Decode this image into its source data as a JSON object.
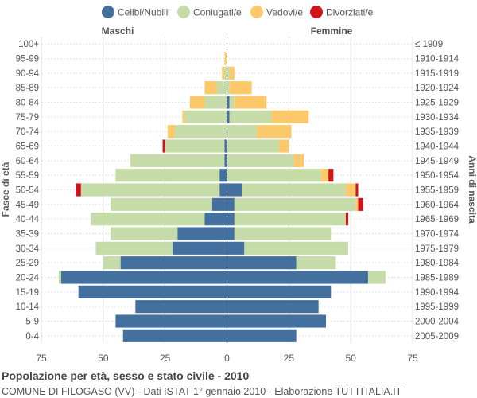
{
  "chart_data": {
    "type": "bar",
    "orientation": "horizontal-population-pyramid",
    "title": "Popolazione per età, sesso e stato civile - 2010",
    "subtitle": "COMUNE DI FILOGASO (VV) - Dati ISTAT 1° gennaio 2010 - Elaborazione TUTTITALIA.IT",
    "left_header": "Maschi",
    "right_header": "Femmine",
    "ylabel_left": "Fasce di età",
    "ylabel_right": "Anni di nascita",
    "xlim": [
      -75,
      75
    ],
    "xticks": [
      -75,
      -50,
      -25,
      0,
      25,
      50,
      75
    ],
    "xtick_labels": [
      "75",
      "50",
      "25",
      "0",
      "25",
      "50",
      "75"
    ],
    "legend": [
      {
        "name": "Celibi/Nubili",
        "color": "#4470a0"
      },
      {
        "name": "Coniugati/e",
        "color": "#c5dba8"
      },
      {
        "name": "Vedovi/e",
        "color": "#fcc96a"
      },
      {
        "name": "Divorziati/e",
        "color": "#d0141a"
      }
    ],
    "age_groups": [
      "100+",
      "95-99",
      "90-94",
      "85-89",
      "80-84",
      "75-79",
      "70-74",
      "65-69",
      "60-64",
      "55-59",
      "50-54",
      "45-49",
      "40-44",
      "35-39",
      "30-34",
      "25-29",
      "20-24",
      "15-19",
      "10-14",
      "5-9",
      "0-4"
    ],
    "birth_years": [
      "≤ 1909",
      "1910-1914",
      "1915-1919",
      "1920-1924",
      "1925-1929",
      "1930-1934",
      "1935-1939",
      "1940-1944",
      "1945-1949",
      "1950-1954",
      "1955-1959",
      "1960-1964",
      "1965-1969",
      "1970-1974",
      "1975-1979",
      "1980-1984",
      "1985-1989",
      "1990-1994",
      "1995-1999",
      "2000-2004",
      "2005-2009"
    ],
    "males": {
      "celibi": [
        0,
        0,
        0,
        0,
        0,
        0,
        0,
        1,
        1,
        3,
        3,
        6,
        9,
        20,
        22,
        43,
        67,
        60,
        37,
        45,
        42
      ],
      "coniugati": [
        0,
        0,
        1,
        4,
        9,
        17,
        21,
        24,
        38,
        42,
        56,
        41,
        46,
        27,
        31,
        7,
        1,
        0,
        0,
        0,
        0
      ],
      "vedovi": [
        0,
        1,
        1,
        5,
        6,
        1,
        3,
        0,
        0,
        0,
        0,
        0,
        0,
        0,
        0,
        0,
        0,
        0,
        0,
        0,
        0
      ],
      "divorziati": [
        0,
        0,
        0,
        0,
        0,
        0,
        0,
        1,
        0,
        0,
        2,
        0,
        0,
        0,
        0,
        0,
        0,
        0,
        0,
        0,
        0
      ]
    },
    "females": {
      "nubili": [
        0,
        0,
        0,
        0,
        1,
        1,
        0,
        0,
        0,
        0,
        6,
        3,
        3,
        3,
        7,
        28,
        57,
        42,
        37,
        40,
        28
      ],
      "coniugate": [
        0,
        0,
        1,
        1,
        2,
        17,
        12,
        21,
        27,
        38,
        42,
        49,
        45,
        39,
        42,
        16,
        7,
        0,
        0,
        0,
        0
      ],
      "vedove": [
        0,
        0,
        2,
        9,
        13,
        15,
        14,
        4,
        4,
        3,
        4,
        1,
        0,
        0,
        0,
        0,
        0,
        0,
        0,
        0,
        0
      ],
      "divorziate": [
        0,
        0,
        0,
        0,
        0,
        0,
        0,
        0,
        0,
        2,
        1,
        2,
        1,
        0,
        0,
        0,
        0,
        0,
        0,
        0,
        0
      ]
    }
  }
}
